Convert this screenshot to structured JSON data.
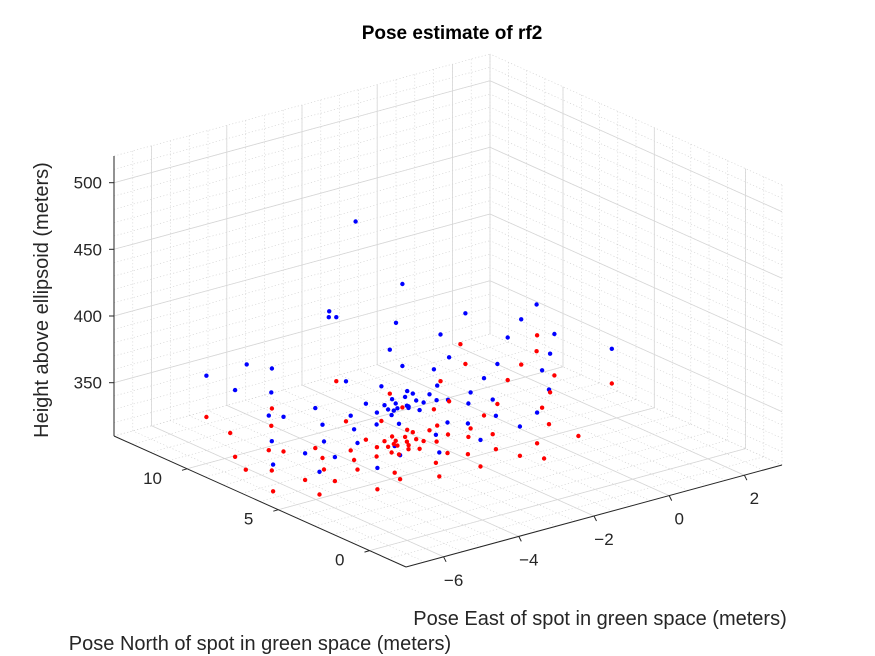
{
  "chart_data": {
    "type": "scatter",
    "projection": "3d",
    "title": "Pose estimate of rf2",
    "xlabel": "Pose East of spot in green space (meters)",
    "ylabel": "Pose North of spot in green space (meters)",
    "zlabel": "Height above ellipsoid (meters)",
    "xlim": [
      -7,
      3
    ],
    "ylim": [
      -2,
      14
    ],
    "zlim": [
      310,
      520
    ],
    "xticks": [
      -6,
      -4,
      -2,
      0,
      2
    ],
    "yticks": [
      0,
      5,
      10
    ],
    "zticks": [
      350,
      400,
      450,
      500
    ],
    "grid": "on",
    "series": [
      {
        "color": "#0000ff",
        "points": [
          [
            -3.0,
            9.0,
            471
          ],
          [
            -4.0,
            8.0,
            413
          ],
          [
            -3.8,
            8.8,
            411
          ],
          [
            -5.8,
            9.2,
            384
          ],
          [
            -6.4,
            8.6,
            373
          ],
          [
            -4.5,
            10.5,
            363
          ],
          [
            -6.0,
            11.0,
            366
          ],
          [
            -5.0,
            9.5,
            355
          ],
          [
            -4.8,
            7.5,
            354
          ],
          [
            -5.5,
            7.8,
            351
          ],
          [
            -3.5,
            8.5,
            358
          ],
          [
            -2.8,
            8.0,
            352
          ],
          [
            -4.2,
            6.8,
            348
          ],
          [
            -3.6,
            7.2,
            350
          ],
          [
            -3.2,
            6.5,
            346
          ],
          [
            -2.6,
            7.0,
            353
          ],
          [
            -2.2,
            6.6,
            350
          ],
          [
            -3.9,
            6.0,
            344
          ],
          [
            -3.4,
            5.8,
            342
          ],
          [
            -2.0,
            6.0,
            348
          ],
          [
            -1.7,
            5.5,
            346
          ],
          [
            -2.5,
            5.0,
            341
          ],
          [
            -4.6,
            5.6,
            338
          ],
          [
            -5.2,
            6.2,
            340
          ],
          [
            -6.2,
            7.0,
            343
          ],
          [
            -5.8,
            6.0,
            337
          ],
          [
            -4.0,
            4.8,
            336
          ],
          [
            -3.0,
            4.6,
            338
          ],
          [
            -2.2,
            4.5,
            341
          ],
          [
            -1.6,
            4.2,
            344
          ],
          [
            -1.2,
            5.2,
            347
          ],
          [
            -0.8,
            6.5,
            352
          ],
          [
            -1.5,
            7.8,
            356
          ],
          [
            -2.0,
            8.5,
            358
          ],
          [
            -1.0,
            8.0,
            360
          ],
          [
            -0.2,
            7.0,
            355
          ],
          [
            -3.3,
            6.8,
            349
          ],
          [
            -3.1,
            6.6,
            350
          ],
          [
            -2.9,
            6.4,
            348
          ],
          [
            -3.2,
            6.3,
            349
          ],
          [
            -3.0,
            6.1,
            350
          ],
          [
            -2.7,
            6.3,
            351
          ],
          [
            -2.8,
            6.7,
            352
          ],
          [
            -3.4,
            6.4,
            349
          ],
          [
            -2.6,
            6.1,
            350
          ],
          [
            -3.1,
            5.9,
            351
          ],
          [
            -2.9,
            5.7,
            349
          ],
          [
            -3.5,
            6.0,
            348
          ],
          [
            -2.4,
            5.8,
            352
          ],
          [
            -3.6,
            6.6,
            347
          ],
          [
            -2.5,
            6.9,
            351
          ],
          [
            -3.0,
            7.0,
            350
          ],
          [
            -1.9,
            6.8,
            353
          ],
          [
            -1.4,
            6.0,
            349
          ],
          [
            -4.4,
            6.2,
            343
          ],
          [
            -4.9,
            6.9,
            346
          ],
          [
            -5.3,
            5.4,
            334
          ],
          [
            -4.1,
            4.3,
            333
          ],
          [
            -3.3,
            3.8,
            332
          ],
          [
            -2.3,
            3.6,
            335
          ],
          [
            -1.3,
            3.5,
            338
          ],
          [
            -0.6,
            4.0,
            340
          ],
          [
            0.2,
            5.0,
            345
          ],
          [
            0.6,
            6.2,
            349
          ],
          [
            1.2,
            7.0,
            352
          ],
          [
            0.8,
            8.5,
            358
          ],
          [
            1.8,
            8.0,
            356
          ],
          [
            2.6,
            6.5,
            348
          ],
          [
            -0.5,
            9.5,
            364
          ],
          [
            0.5,
            10.2,
            368
          ],
          [
            1.5,
            9.2,
            362
          ],
          [
            2.2,
            9.8,
            364
          ],
          [
            -1.2,
            10.5,
            372
          ],
          [
            -2.5,
            11.5,
            380
          ],
          [
            -0.3,
            12.0,
            385
          ],
          [
            -4.8,
            4.1,
            330
          ],
          [
            -6.0,
            4.8,
            332
          ],
          [
            -6.7,
            5.9,
            336
          ],
          [
            -5.6,
            8.4,
            349
          ],
          [
            -1.8,
            9.6,
            362
          ]
        ]
      },
      {
        "color": "#ff0000",
        "points": [
          [
            -4.0,
            8.0,
            365
          ],
          [
            -6.4,
            8.6,
            323
          ],
          [
            -6.0,
            11.0,
            335
          ],
          [
            -5.5,
            7.8,
            325
          ],
          [
            -4.8,
            7.5,
            324
          ],
          [
            -5.0,
            9.5,
            330
          ],
          [
            -4.5,
            10.5,
            333
          ],
          [
            -3.5,
            8.5,
            328
          ],
          [
            -2.8,
            8.0,
            326
          ],
          [
            -4.2,
            6.8,
            322
          ],
          [
            -3.6,
            7.2,
            323
          ],
          [
            -3.2,
            6.5,
            321
          ],
          [
            -2.6,
            7.0,
            324
          ],
          [
            -2.2,
            6.6,
            323
          ],
          [
            -3.9,
            6.0,
            320
          ],
          [
            -3.4,
            5.8,
            319
          ],
          [
            -2.0,
            6.0,
            322
          ],
          [
            -1.7,
            5.5,
            321
          ],
          [
            -2.5,
            5.0,
            318
          ],
          [
            -4.6,
            5.6,
            318
          ],
          [
            -5.2,
            6.2,
            319
          ],
          [
            -6.2,
            7.0,
            321
          ],
          [
            -5.8,
            6.0,
            317
          ],
          [
            -4.0,
            4.8,
            316
          ],
          [
            -3.0,
            4.6,
            317
          ],
          [
            -2.2,
            4.5,
            318
          ],
          [
            -1.6,
            4.2,
            319
          ],
          [
            -1.2,
            5.2,
            321
          ],
          [
            -0.8,
            6.5,
            324
          ],
          [
            -1.5,
            7.8,
            326
          ],
          [
            -2.0,
            8.5,
            327
          ],
          [
            -1.0,
            8.0,
            327
          ],
          [
            -0.2,
            7.0,
            325
          ],
          [
            -3.3,
            6.8,
            322
          ],
          [
            -3.1,
            6.6,
            322
          ],
          [
            -2.9,
            6.4,
            321
          ],
          [
            -3.2,
            6.3,
            321
          ],
          [
            -3.0,
            6.1,
            321
          ],
          [
            -2.7,
            6.3,
            322
          ],
          [
            -2.8,
            6.7,
            322
          ],
          [
            -3.4,
            6.4,
            321
          ],
          [
            -2.6,
            6.1,
            321
          ],
          [
            -3.1,
            5.9,
            320
          ],
          [
            -2.9,
            5.7,
            320
          ],
          [
            -3.5,
            6.0,
            320
          ],
          [
            -2.4,
            5.8,
            321
          ],
          [
            -3.6,
            6.6,
            321
          ],
          [
            -2.5,
            6.9,
            322
          ],
          [
            -3.0,
            7.0,
            322
          ],
          [
            -1.9,
            6.8,
            323
          ],
          [
            -1.4,
            6.0,
            322
          ],
          [
            -4.4,
            6.2,
            320
          ],
          [
            -4.9,
            6.9,
            321
          ],
          [
            -5.3,
            5.4,
            316
          ],
          [
            -4.1,
            4.3,
            315
          ],
          [
            -3.3,
            3.8,
            314
          ],
          [
            -2.3,
            3.6,
            315
          ],
          [
            -1.3,
            3.5,
            316
          ],
          [
            -0.6,
            4.0,
            317
          ],
          [
            0.2,
            5.0,
            319
          ],
          [
            0.6,
            6.2,
            321
          ],
          [
            1.2,
            7.0,
            323
          ],
          [
            0.8,
            8.5,
            326
          ],
          [
            1.8,
            8.0,
            325
          ],
          [
            2.6,
            6.5,
            322
          ],
          [
            -0.5,
            9.5,
            329
          ],
          [
            0.5,
            10.2,
            330
          ],
          [
            1.5,
            9.2,
            328
          ],
          [
            2.2,
            9.8,
            329
          ],
          [
            -4.8,
            4.1,
            314
          ],
          [
            -6.0,
            4.8,
            315
          ],
          [
            -6.7,
            5.9,
            316
          ],
          [
            -5.6,
            8.4,
            323
          ],
          [
            -1.8,
            9.6,
            329
          ],
          [
            2.7,
            10.8,
            331
          ],
          [
            1.0,
            11.5,
            333
          ],
          [
            -5.9,
            9.9,
            329
          ],
          [
            -6.6,
            7.6,
            321
          ],
          [
            -0.9,
            3.0,
            314
          ],
          [
            0.4,
            3.8,
            316
          ]
        ]
      }
    ]
  }
}
